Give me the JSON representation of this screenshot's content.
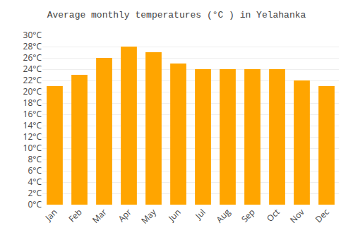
{
  "chart_data": {
    "type": "bar",
    "title": "Average monthly temperatures (°C ) in Yelahanka",
    "categories": [
      "Jan",
      "Feb",
      "Mar",
      "Apr",
      "May",
      "Jun",
      "Jul",
      "Aug",
      "Sep",
      "Oct",
      "Nov",
      "Dec"
    ],
    "values": [
      21,
      23,
      26,
      28,
      27,
      25,
      24,
      24,
      24,
      24,
      22,
      21
    ],
    "color": "#FFA500",
    "ylim": [
      0,
      30
    ],
    "yticks": [
      {
        "value": 0,
        "label": "0°C"
      },
      {
        "value": 2,
        "label": "2°C"
      },
      {
        "value": 4,
        "label": "4°C"
      },
      {
        "value": 6,
        "label": "6°C"
      },
      {
        "value": 8,
        "label": "8°C"
      },
      {
        "value": 10,
        "label": "10°C"
      },
      {
        "value": 12,
        "label": "12°C"
      },
      {
        "value": 14,
        "label": "14°C"
      },
      {
        "value": 16,
        "label": "16°C"
      },
      {
        "value": 18,
        "label": "18°C"
      },
      {
        "value": 20,
        "label": "20°C"
      },
      {
        "value": 22,
        "label": "22°C"
      },
      {
        "value": 24,
        "label": "24°C"
      },
      {
        "value": 26,
        "label": "26°C"
      },
      {
        "value": 28,
        "label": "28°C"
      },
      {
        "value": 30,
        "label": "30°C"
      }
    ],
    "grid": true
  }
}
